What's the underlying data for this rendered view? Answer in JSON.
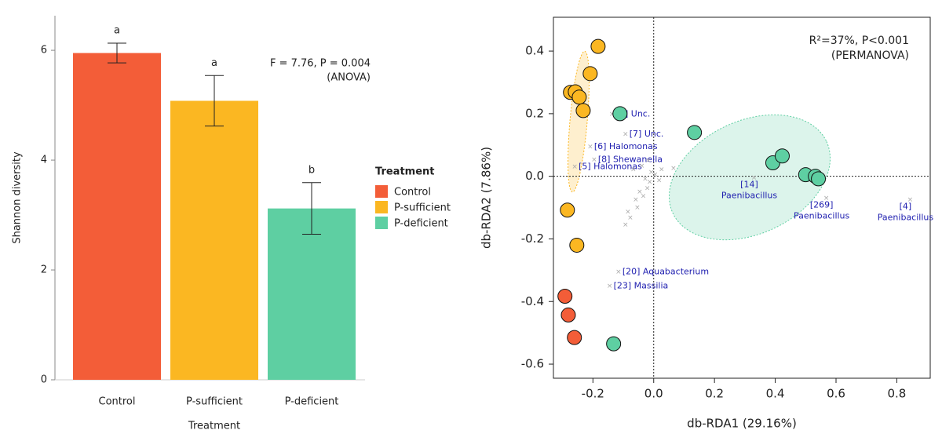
{
  "chart_data": [
    {
      "type": "bar",
      "y_label": "Shannon diversity",
      "x_label": "Treatment",
      "categories": [
        "Control",
        "P-sufficient",
        "P-deficient"
      ],
      "values": [
        5.95,
        5.08,
        3.12
      ],
      "errors": [
        0.18,
        0.46,
        0.47
      ],
      "colors": [
        "#f35d38",
        "#fbb722",
        "#5ecfa2"
      ],
      "letters": [
        "a",
        "a",
        "b"
      ],
      "annotation": [
        "F = 7.76, P = 0.004",
        "(ANOVA)"
      ],
      "legend_title": "Treatment",
      "ylim": [
        0,
        6.63
      ],
      "yticks": [
        0,
        2,
        4,
        6
      ]
    },
    {
      "type": "scatter",
      "x_label": "db-RDA1 (29.16%)",
      "y_label": "db-RDA2 (7.86%)",
      "annotation": [
        "R²=37%, P<0.001",
        "(PERMANOVA)"
      ],
      "xlim": [
        -0.33,
        0.91
      ],
      "ylim": [
        -0.645,
        0.508
      ],
      "xticks": [
        -0.2,
        {
          "value": 0,
          "label": "0.0"
        },
        0.2,
        0.4,
        0.6,
        0.8
      ],
      "yticks": [
        -0.6,
        -0.4,
        -0.2,
        {
          "value": 0,
          "label": "0.0"
        },
        0.2,
        0.4
      ],
      "species": {
        "color": "#aaaaaa",
        "x": [
          -0.137,
          -0.093,
          -0.209,
          -0.196,
          -0.26,
          0.33,
          0.568,
          0.844,
          -0.116,
          -0.145,
          -0.067,
          0.026,
          0.065,
          -0.093,
          -0.077,
          -0.054,
          -0.034,
          -0.021,
          -0.013,
          -0.028,
          -0.008,
          0.005,
          -0.039,
          -0.018,
          0.018,
          -0.046,
          -0.059,
          -0.085
        ],
        "y": [
          0.198,
          0.135,
          0.095,
          0.053,
          0.03,
          -0.005,
          -0.07,
          -0.075,
          -0.305,
          -0.35,
          0.022,
          0.022,
          0.025,
          -0.155,
          -0.133,
          -0.1,
          -0.063,
          -0.038,
          -0.018,
          -0.008,
          0.013,
          0.005,
          0.033,
          0.05,
          -0.013,
          -0.05,
          -0.075,
          -0.113
        ],
        "labels": [
          "[3] Unc.",
          "[7] Unc.",
          "[6] Halomonas",
          "[8] Shewanella",
          "[5] Halomonas",
          [
            "[14]",
            "Paenibacillus"
          ],
          [
            "[269]",
            "Paenibacillus"
          ],
          [
            "[4]",
            "Paenibacillus"
          ],
          "[20] Aquabacterium",
          "[23] Massilia",
          null,
          null,
          null,
          null,
          null,
          null,
          null,
          null,
          null,
          null,
          null,
          null,
          null,
          null,
          null,
          null,
          null,
          null
        ]
      },
      "series": [
        {
          "color": "#fbb722",
          "x": [
            -0.183,
            -0.209,
            -0.274,
            -0.258,
            -0.245,
            -0.232,
            -0.284,
            -0.253
          ],
          "y": [
            0.415,
            0.328,
            0.268,
            0.27,
            0.253,
            0.21,
            -0.108,
            -0.22
          ]
        },
        {
          "color": "#f35d38",
          "x": [
            -0.292,
            -0.281,
            -0.261
          ],
          "y": [
            -0.383,
            -0.443,
            -0.515
          ]
        },
        {
          "color": "#5ecfa2",
          "x": [
            -0.111,
            0.134,
            0.392,
            0.423,
            0.5,
            0.532,
            0.542,
            -0.132
          ],
          "y": [
            0.2,
            0.14,
            0.043,
            0.065,
            0.005,
            0.0,
            -0.008,
            -0.535
          ]
        }
      ]
    }
  ]
}
